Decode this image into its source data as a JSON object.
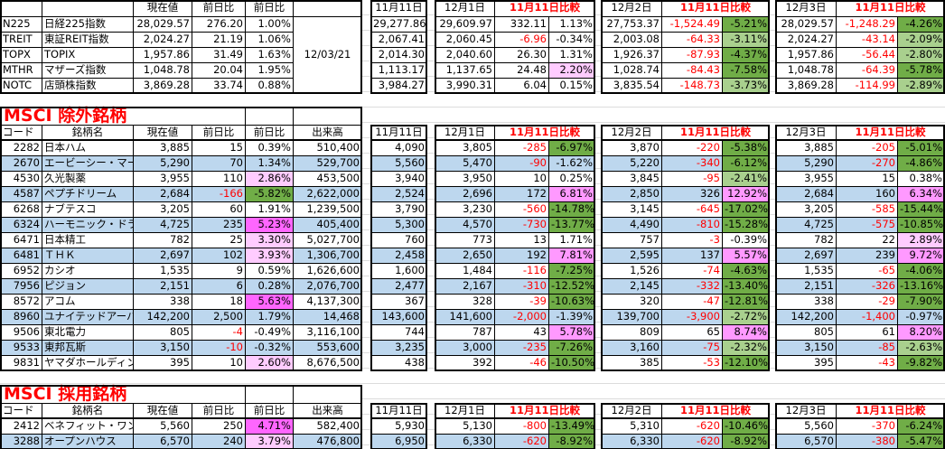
{
  "colors": {
    "negative_text": "#ff0000",
    "row_band": "#bdd7ee",
    "dark_green": "#70ad47",
    "light_green": "#a9d08e",
    "pink_light": "#ffccff",
    "pink_medium": "#ff99ff",
    "pink_strong": "#ff66ff"
  },
  "headers": {
    "code": "コード",
    "name": "銘柄名",
    "price": "現在値",
    "chg": "前日比",
    "pct": "前日比",
    "vol": "出来高",
    "n11": "11月11日",
    "d1": "12月1日",
    "d2": "12月2日",
    "d3": "12月3日",
    "cmp": "11月11日比較"
  },
  "top": {
    "date": "12/03/21",
    "rows": [
      {
        "code": "N225",
        "name": "日経225指数",
        "price": "28,029.57",
        "chg": "276.20",
        "pct": "1.00%",
        "n11": "29,277.86",
        "d1": {
          "v": "29,609.97",
          "diff": "332.11",
          "pct": "1.13%",
          "hl": ""
        },
        "d2": {
          "v": "27,753.37",
          "diff": "-1,524.49",
          "pct": "-5.21%",
          "hl": "dg"
        },
        "d3": {
          "v": "28,029.57",
          "diff": "-1,248.29",
          "pct": "-4.26%",
          "hl": "dg"
        }
      },
      {
        "code": "TREIT",
        "name": "東証REIT指数",
        "price": "2,024.27",
        "chg": "21.19",
        "pct": "1.06%",
        "n11": "2,067.41",
        "d1": {
          "v": "2,060.45",
          "diff": "-6.96",
          "pct": "-0.34%",
          "hl": ""
        },
        "d2": {
          "v": "2,003.08",
          "diff": "-64.33",
          "pct": "-3.11%",
          "hl": "lg"
        },
        "d3": {
          "v": "2,024.27",
          "diff": "-43.14",
          "pct": "-2.09%",
          "hl": "lg"
        }
      },
      {
        "code": "TOPX",
        "name": "TOPIX",
        "price": "1,957.86",
        "chg": "31.49",
        "pct": "1.63%",
        "n11": "2,014.30",
        "d1": {
          "v": "2,040.60",
          "diff": "26.30",
          "pct": "1.31%",
          "hl": ""
        },
        "d2": {
          "v": "1,926.37",
          "diff": "-87.93",
          "pct": "-4.37%",
          "hl": "dg"
        },
        "d3": {
          "v": "1,957.86",
          "diff": "-56.44",
          "pct": "-2.80%",
          "hl": "lg"
        }
      },
      {
        "code": "MTHR",
        "name": "マザーズ指数",
        "price": "1,048.78",
        "chg": "20.04",
        "pct": "1.95%",
        "n11": "1,113.17",
        "d1": {
          "v": "1,137.65",
          "diff": "24.48",
          "pct": "2.20%",
          "hl": "p1"
        },
        "d2": {
          "v": "1,028.74",
          "diff": "-84.43",
          "pct": "-7.58%",
          "hl": "dg"
        },
        "d3": {
          "v": "1,048.78",
          "diff": "-64.39",
          "pct": "-5.78%",
          "hl": "dg"
        }
      },
      {
        "code": "NOTC",
        "name": "店頭株指数",
        "price": "3,869.28",
        "chg": "33.74",
        "pct": "0.88%",
        "n11": "3,984.27",
        "d1": {
          "v": "3,990.31",
          "diff": "6.04",
          "pct": "0.15%",
          "hl": ""
        },
        "d2": {
          "v": "3,835.54",
          "diff": "-148.73",
          "pct": "-3.73%",
          "hl": "lg"
        },
        "d3": {
          "v": "3,869.28",
          "diff": "-114.99",
          "pct": "-2.89%",
          "hl": "lg"
        }
      }
    ]
  },
  "excluded": {
    "title": "MSCI 除外銘柄",
    "rows": [
      {
        "code": "2282",
        "name": "日本ハム",
        "price": "3,885",
        "chg": "15",
        "pct": "0.39%",
        "pct_hl": "",
        "vol": "510,400",
        "n11": "4,090",
        "d1": {
          "v": "3,805",
          "diff": "-285",
          "pct": "-6.97%",
          "hl": "dg"
        },
        "d2": {
          "v": "3,870",
          "diff": "-220",
          "pct": "-5.38%",
          "hl": "dg"
        },
        "d3": {
          "v": "3,885",
          "diff": "-205",
          "pct": "-5.01%",
          "hl": "dg"
        }
      },
      {
        "code": "2670",
        "name": "エービーシー・マート",
        "price": "5,290",
        "chg": "70",
        "pct": "1.34%",
        "pct_hl": "",
        "vol": "529,700",
        "n11": "5,560",
        "d1": {
          "v": "5,470",
          "diff": "-90",
          "pct": "-1.62%",
          "hl": ""
        },
        "d2": {
          "v": "5,220",
          "diff": "-340",
          "pct": "-6.12%",
          "hl": "dg"
        },
        "d3": {
          "v": "5,290",
          "diff": "-270",
          "pct": "-4.86%",
          "hl": "dg"
        }
      },
      {
        "code": "4530",
        "name": "久光製薬",
        "price": "3,955",
        "chg": "110",
        "pct": "2.86%",
        "pct_hl": "p1",
        "vol": "453,500",
        "n11": "3,940",
        "d1": {
          "v": "3,950",
          "diff": "10",
          "pct": "0.25%",
          "hl": ""
        },
        "d2": {
          "v": "3,845",
          "diff": "-95",
          "pct": "-2.41%",
          "hl": "lg"
        },
        "d3": {
          "v": "3,955",
          "diff": "15",
          "pct": "0.38%",
          "hl": ""
        }
      },
      {
        "code": "4587",
        "name": "ペプチドリーム",
        "price": "2,684",
        "chg": "-166",
        "pct": "-5.82%",
        "pct_hl": "dg",
        "vol": "2,622,000",
        "n11": "2,524",
        "d1": {
          "v": "2,696",
          "diff": "172",
          "pct": "6.81%",
          "hl": "p2"
        },
        "d2": {
          "v": "2,850",
          "diff": "326",
          "pct": "12.92%",
          "hl": "p2"
        },
        "d3": {
          "v": "2,684",
          "diff": "160",
          "pct": "6.34%",
          "hl": "p2"
        }
      },
      {
        "code": "6268",
        "name": "ナブテスコ",
        "price": "3,205",
        "chg": "60",
        "pct": "1.91%",
        "pct_hl": "",
        "vol": "1,239,500",
        "n11": "3,790",
        "d1": {
          "v": "3,230",
          "diff": "-560",
          "pct": "-14.78%",
          "hl": "dg"
        },
        "d2": {
          "v": "3,145",
          "diff": "-645",
          "pct": "-17.02%",
          "hl": "dg"
        },
        "d3": {
          "v": "3,205",
          "diff": "-585",
          "pct": "-15.44%",
          "hl": "dg"
        }
      },
      {
        "code": "6324",
        "name": "ハーモニック・ドライブ・シ",
        "price": "4,725",
        "chg": "235",
        "pct": "5.23%",
        "pct_hl": "p3",
        "vol": "405,400",
        "n11": "5,300",
        "d1": {
          "v": "4,570",
          "diff": "-730",
          "pct": "-13.77%",
          "hl": "dg"
        },
        "d2": {
          "v": "4,490",
          "diff": "-810",
          "pct": "-15.28%",
          "hl": "dg"
        },
        "d3": {
          "v": "4,725",
          "diff": "-575",
          "pct": "-10.85%",
          "hl": "dg"
        }
      },
      {
        "code": "6471",
        "name": "日本精工",
        "price": "782",
        "chg": "25",
        "pct": "3.30%",
        "pct_hl": "p1",
        "vol": "5,027,700",
        "n11": "760",
        "d1": {
          "v": "773",
          "diff": "13",
          "pct": "1.71%",
          "hl": ""
        },
        "d2": {
          "v": "757",
          "diff": "-3",
          "pct": "-0.39%",
          "hl": ""
        },
        "d3": {
          "v": "782",
          "diff": "22",
          "pct": "2.89%",
          "hl": "p1"
        }
      },
      {
        "code": "6481",
        "name": "ＴＨＫ",
        "price": "2,697",
        "chg": "102",
        "pct": "3.93%",
        "pct_hl": "p1",
        "vol": "1,306,700",
        "n11": "2,458",
        "d1": {
          "v": "2,650",
          "diff": "192",
          "pct": "7.81%",
          "hl": "p2"
        },
        "d2": {
          "v": "2,595",
          "diff": "137",
          "pct": "5.57%",
          "hl": "p2"
        },
        "d3": {
          "v": "2,697",
          "diff": "239",
          "pct": "9.72%",
          "hl": "p2"
        }
      },
      {
        "code": "6952",
        "name": "カシオ",
        "price": "1,535",
        "chg": "9",
        "pct": "0.59%",
        "pct_hl": "",
        "vol": "1,626,600",
        "n11": "1,600",
        "d1": {
          "v": "1,484",
          "diff": "-116",
          "pct": "-7.25%",
          "hl": "dg"
        },
        "d2": {
          "v": "1,526",
          "diff": "-74",
          "pct": "-4.63%",
          "hl": "dg"
        },
        "d3": {
          "v": "1,535",
          "diff": "-65",
          "pct": "-4.06%",
          "hl": "dg"
        }
      },
      {
        "code": "7956",
        "name": "ピジョン",
        "price": "2,151",
        "chg": "6",
        "pct": "0.28%",
        "pct_hl": "",
        "vol": "2,076,700",
        "n11": "2,477",
        "d1": {
          "v": "2,167",
          "diff": "-310",
          "pct": "-12.52%",
          "hl": "dg"
        },
        "d2": {
          "v": "2,145",
          "diff": "-332",
          "pct": "-13.40%",
          "hl": "dg"
        },
        "d3": {
          "v": "2,151",
          "diff": "-326",
          "pct": "-13.16%",
          "hl": "dg"
        }
      },
      {
        "code": "8572",
        "name": "アコム",
        "price": "338",
        "chg": "18",
        "pct": "5.63%",
        "pct_hl": "p3",
        "vol": "4,137,300",
        "n11": "367",
        "d1": {
          "v": "328",
          "diff": "-39",
          "pct": "-10.63%",
          "hl": "dg"
        },
        "d2": {
          "v": "320",
          "diff": "-47",
          "pct": "-12.81%",
          "hl": "dg"
        },
        "d3": {
          "v": "338",
          "diff": "-29",
          "pct": "-7.90%",
          "hl": "dg"
        }
      },
      {
        "code": "8960",
        "name": "ユナイテッドアーバン投資",
        "price": "142,200",
        "chg": "2,500",
        "pct": "1.79%",
        "pct_hl": "",
        "vol": "14,468",
        "n11": "143,600",
        "d1": {
          "v": "141,600",
          "diff": "-2,000",
          "pct": "-1.39%",
          "hl": ""
        },
        "d2": {
          "v": "139,700",
          "diff": "-3,900",
          "pct": "-2.72%",
          "hl": "lg"
        },
        "d3": {
          "v": "142,200",
          "diff": "-1,400",
          "pct": "-0.97%",
          "hl": ""
        }
      },
      {
        "code": "9506",
        "name": "東北電力",
        "price": "805",
        "chg": "-4",
        "pct": "-0.49%",
        "pct_hl": "",
        "vol": "3,116,100",
        "n11": "744",
        "d1": {
          "v": "787",
          "diff": "43",
          "pct": "5.78%",
          "hl": "p2"
        },
        "d2": {
          "v": "809",
          "diff": "65",
          "pct": "8.74%",
          "hl": "p2"
        },
        "d3": {
          "v": "805",
          "diff": "61",
          "pct": "8.20%",
          "hl": "p2"
        }
      },
      {
        "code": "9533",
        "name": "東邦瓦斯",
        "price": "3,150",
        "chg": "-10",
        "pct": "-0.32%",
        "pct_hl": "",
        "vol": "553,600",
        "n11": "3,235",
        "d1": {
          "v": "3,000",
          "diff": "-235",
          "pct": "-7.26%",
          "hl": "dg"
        },
        "d2": {
          "v": "3,160",
          "diff": "-75",
          "pct": "-2.32%",
          "hl": "lg"
        },
        "d3": {
          "v": "3,150",
          "diff": "-85",
          "pct": "-2.63%",
          "hl": "lg"
        }
      },
      {
        "code": "9831",
        "name": "ヤマダホールディングス",
        "price": "395",
        "chg": "10",
        "pct": "2.60%",
        "pct_hl": "p1",
        "vol": "8,676,500",
        "n11": "438",
        "d1": {
          "v": "392",
          "diff": "-46",
          "pct": "-10.50%",
          "hl": "dg"
        },
        "d2": {
          "v": "385",
          "diff": "-53",
          "pct": "-12.10%",
          "hl": "dg"
        },
        "d3": {
          "v": "395",
          "diff": "-43",
          "pct": "-9.82%",
          "hl": "dg"
        }
      }
    ]
  },
  "adopted": {
    "title": "MSCI  採用銘柄",
    "rows": [
      {
        "code": "2412",
        "name": "ベネフィット・ワン",
        "price": "5,560",
        "chg": "250",
        "pct": "4.71%",
        "pct_hl": "p3",
        "vol": "582,400",
        "n11": "5,930",
        "d1": {
          "v": "5,130",
          "diff": "-800",
          "pct": "-13.49%",
          "hl": "dg"
        },
        "d2": {
          "v": "5,310",
          "diff": "-620",
          "pct": "-10.46%",
          "hl": "dg"
        },
        "d3": {
          "v": "5,560",
          "diff": "-370",
          "pct": "-6.24%",
          "hl": "dg"
        }
      },
      {
        "code": "3288",
        "name": "オープンハウス",
        "price": "6,570",
        "chg": "240",
        "pct": "3.79%",
        "pct_hl": "p1",
        "vol": "476,800",
        "n11": "6,950",
        "d1": {
          "v": "6,330",
          "diff": "-620",
          "pct": "-8.92%",
          "hl": "dg"
        },
        "d2": {
          "v": "6,330",
          "diff": "-620",
          "pct": "-8.92%",
          "hl": "dg"
        },
        "d3": {
          "v": "6,570",
          "diff": "-380",
          "pct": "-5.47%",
          "hl": "dg"
        }
      }
    ]
  }
}
